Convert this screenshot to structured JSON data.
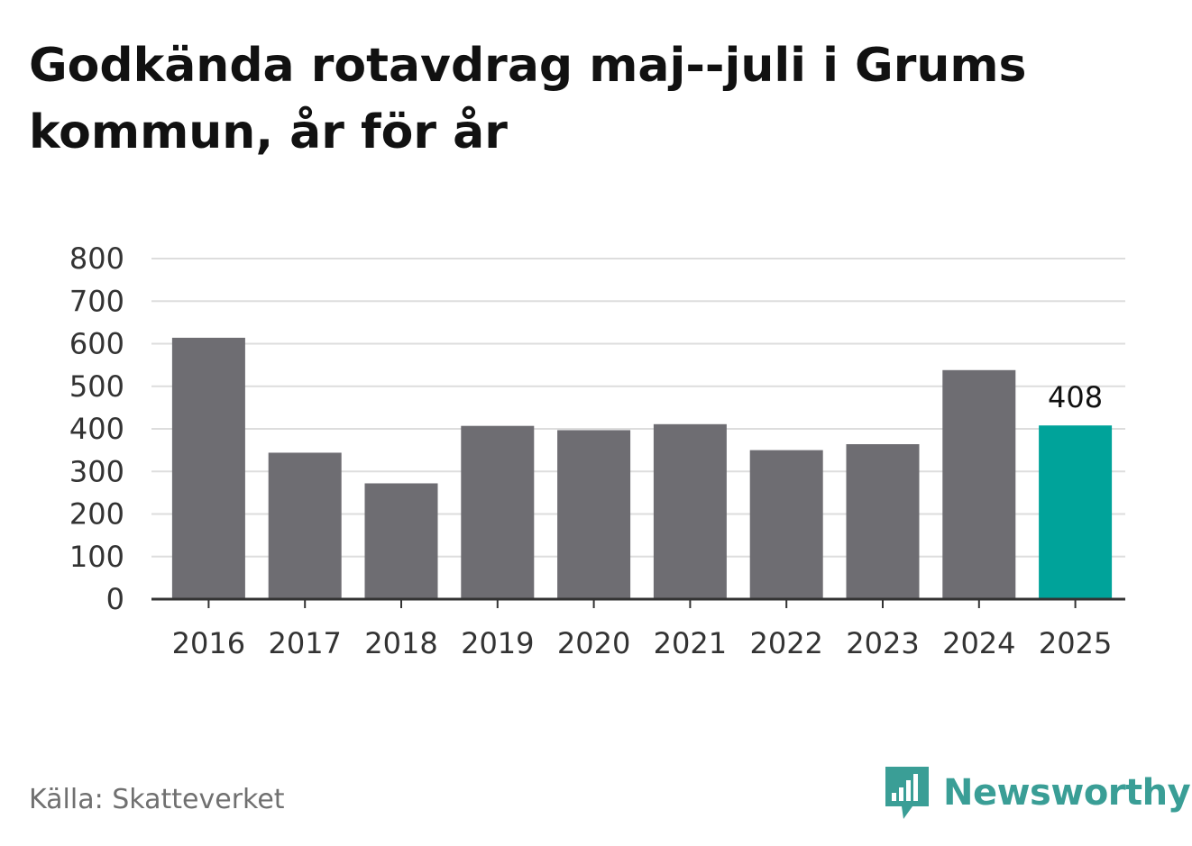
{
  "title": "Godkända rotavdrag maj--juli i Grums kommun, år för år",
  "source": "Källa: Skatteverket",
  "brand": {
    "name": "Newsworthy",
    "icon": "newsworthy-logo-icon",
    "color": "#3a9e96"
  },
  "colors": {
    "bar": "#6e6d72",
    "highlight": "#00a39a",
    "grid": "#dddddd",
    "axis": "#333333"
  },
  "chart_data": {
    "type": "bar",
    "title": "Godkända rotavdrag maj--juli i Grums kommun, år för år",
    "xlabel": "",
    "ylabel": "",
    "categories": [
      "2016",
      "2017",
      "2018",
      "2019",
      "2020",
      "2021",
      "2022",
      "2023",
      "2024",
      "2025"
    ],
    "values": [
      614,
      344,
      272,
      407,
      397,
      411,
      350,
      364,
      538,
      408
    ],
    "highlight_index": 9,
    "data_labels": [
      {
        "index": 9,
        "text": "408"
      }
    ],
    "ylim": [
      0,
      800
    ],
    "yticks": [
      0,
      100,
      200,
      300,
      400,
      500,
      600,
      700,
      800
    ],
    "grid": true,
    "legend": "none"
  }
}
